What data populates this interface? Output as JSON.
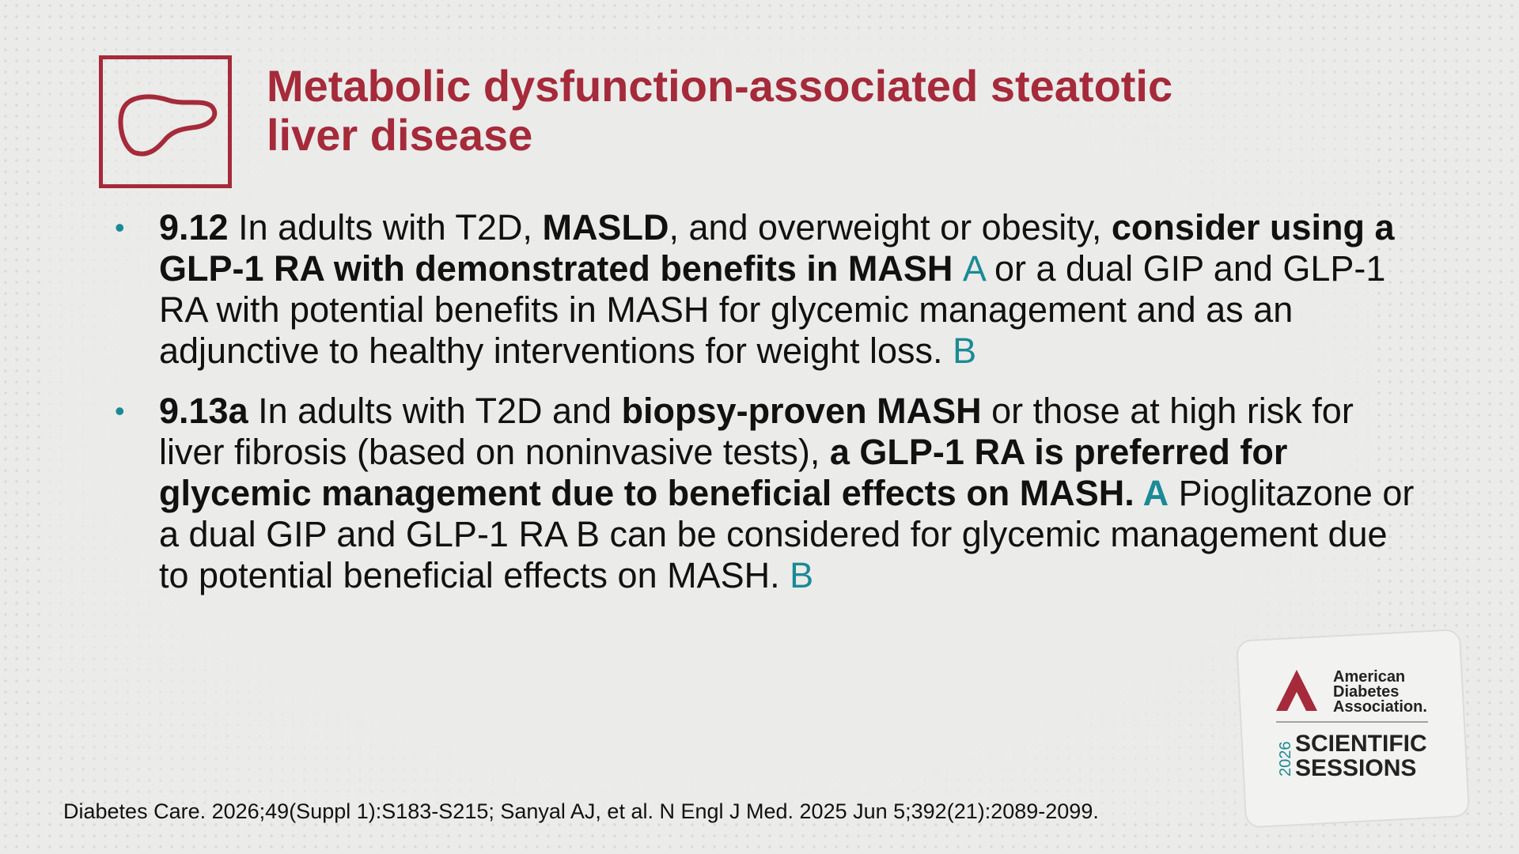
{
  "header": {
    "title_lines": [
      "Metabolic dysfunction-associated steatotic",
      "liver disease"
    ]
  },
  "bullets": [
    {
      "segments": [
        {
          "text": "9.12",
          "style": "bold"
        },
        {
          "text": " In adults with T2D, ",
          "style": "normal"
        },
        {
          "text": "MASLD",
          "style": "bold"
        },
        {
          "text": ", and overweight or obesity, ",
          "style": "normal"
        },
        {
          "text": "consider using a GLP-1 RA with demonstrated benefits in MASH ",
          "style": "bold"
        },
        {
          "text": "A",
          "style": "grade"
        },
        {
          "text": " or a dual GIP and GLP-1 RA with potential benefits in MASH for glycemic management and as an adjunctive to healthy interventions for weight loss. ",
          "style": "normal"
        },
        {
          "text": "B",
          "style": "grade"
        }
      ]
    },
    {
      "segments": [
        {
          "text": "9.13a",
          "style": "bold"
        },
        {
          "text": " In adults with T2D and ",
          "style": "normal"
        },
        {
          "text": "biopsy-proven MASH",
          "style": "bold"
        },
        {
          "text": " or those at high risk for liver fibrosis (based on noninvasive tests), ",
          "style": "normal"
        },
        {
          "text": "a GLP-1 RA is preferred for glycemic management due to beneficial effects on MASH. ",
          "style": "bold"
        },
        {
          "text": "A",
          "style": "grade-bold"
        },
        {
          "text": " Pioglitazone or a dual GIP and GLP-1 RA B can be considered for glycemic management due to potential beneficial effects on MASH. ",
          "style": "normal"
        },
        {
          "text": "B",
          "style": "grade"
        }
      ]
    }
  ],
  "footnote": "Diabetes Care. 2026;49(Suppl 1):S183-S215; Sanyal AJ, et al. N Engl J Med. 2025 Jun 5;392(21):2089-2099.",
  "logo": {
    "org_lines": [
      "American",
      "Diabetes",
      "Association."
    ],
    "year": "2026",
    "event_lines": [
      "SCIENTIFIC",
      "SESSIONS"
    ]
  }
}
